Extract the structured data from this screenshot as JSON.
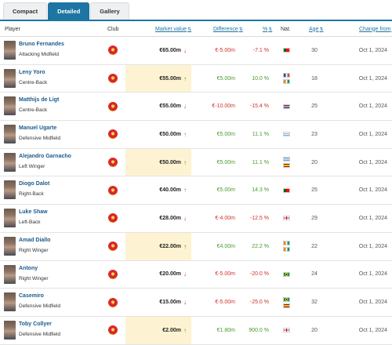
{
  "tabs": [
    {
      "label": "Compact",
      "active": false
    },
    {
      "label": "Detailed",
      "active": true
    },
    {
      "label": "Gallery",
      "active": false
    }
  ],
  "columns": {
    "player": "Player",
    "club": "Club",
    "market_value": "Market value",
    "difference": "Difference",
    "percent": "%",
    "nat": "Nat.",
    "age": "Age",
    "change_from": "Change from"
  },
  "icons": {
    "sort": "sort-arrows-icon",
    "up": "trend-up-arrow-icon",
    "down": "trend-down-arrow-icon",
    "club": "manchester-united-crest-icon"
  },
  "colors": {
    "accent": "#1d75a3",
    "positive": "#4a9a2a",
    "negative": "#d0312d",
    "highlight": "#fdf3d2"
  },
  "rows": [
    {
      "name": "Bruno Fernandes",
      "position": "Attacking Midfield",
      "market_value": "€65.00m",
      "trend": "down",
      "highlight": false,
      "difference": "€-5.00m",
      "percent": "-7.1 %",
      "flags": [
        "portugal"
      ],
      "age": "30",
      "change_from": "Oct 1, 2024"
    },
    {
      "name": "Leny Yoro",
      "position": "Centre-Back",
      "market_value": "€55.00m",
      "trend": "up",
      "highlight": true,
      "difference": "€5.00m",
      "percent": "10.0 %",
      "flags": [
        "france",
        "ivory-coast"
      ],
      "age": "18",
      "change_from": "Oct 1, 2024"
    },
    {
      "name": "Matthijs de Ligt",
      "position": "Centre-Back",
      "market_value": "€55.00m",
      "trend": "down",
      "highlight": false,
      "difference": "€-10.00m",
      "percent": "-15.4 %",
      "flags": [
        "netherlands"
      ],
      "age": "25",
      "change_from": "Oct 1, 2024"
    },
    {
      "name": "Manuel Ugarte",
      "position": "Defensive Midfield",
      "market_value": "€50.00m",
      "trend": "up",
      "highlight": false,
      "difference": "€5.00m",
      "percent": "11.1 %",
      "flags": [
        "uruguay"
      ],
      "age": "23",
      "change_from": "Oct 1, 2024"
    },
    {
      "name": "Alejandro Garnacho",
      "position": "Left Winger",
      "market_value": "€50.00m",
      "trend": "up",
      "highlight": true,
      "difference": "€5.00m",
      "percent": "11.1 %",
      "flags": [
        "argentina",
        "spain"
      ],
      "age": "20",
      "change_from": "Oct 1, 2024"
    },
    {
      "name": "Diogo Dalot",
      "position": "Right-Back",
      "market_value": "€40.00m",
      "trend": "up",
      "highlight": false,
      "difference": "€5.00m",
      "percent": "14.3 %",
      "flags": [
        "portugal"
      ],
      "age": "25",
      "change_from": "Oct 1, 2024"
    },
    {
      "name": "Luke Shaw",
      "position": "Left-Back",
      "market_value": "€28.00m",
      "trend": "down",
      "highlight": false,
      "difference": "€-4.00m",
      "percent": "-12.5 %",
      "flags": [
        "england"
      ],
      "age": "29",
      "change_from": "Oct 1, 2024"
    },
    {
      "name": "Amad Diallo",
      "position": "Right Winger",
      "market_value": "€22.00m",
      "trend": "up",
      "highlight": true,
      "difference": "€4.00m",
      "percent": "22.2 %",
      "flags": [
        "ivory-coast",
        "ivory-coast"
      ],
      "age": "22",
      "change_from": "Oct 1, 2024"
    },
    {
      "name": "Antony",
      "position": "Right Winger",
      "market_value": "€20.00m",
      "trend": "down",
      "highlight": false,
      "difference": "€-5.00m",
      "percent": "-20.0 %",
      "flags": [
        "brazil"
      ],
      "age": "24",
      "change_from": "Oct 1, 2024"
    },
    {
      "name": "Casemiro",
      "position": "Defensive Midfield",
      "market_value": "€15.00m",
      "trend": "down",
      "highlight": false,
      "difference": "€-5.00m",
      "percent": "-25.0 %",
      "flags": [
        "brazil",
        "spain"
      ],
      "age": "32",
      "change_from": "Oct 1, 2024"
    },
    {
      "name": "Toby Collyer",
      "position": "Defensive Midfield",
      "market_value": "€2.00m",
      "trend": "up",
      "highlight": true,
      "difference": "€1.80m",
      "percent": "900.0 %",
      "flags": [
        "england"
      ],
      "age": "20",
      "change_from": "Oct 1, 2024"
    }
  ]
}
